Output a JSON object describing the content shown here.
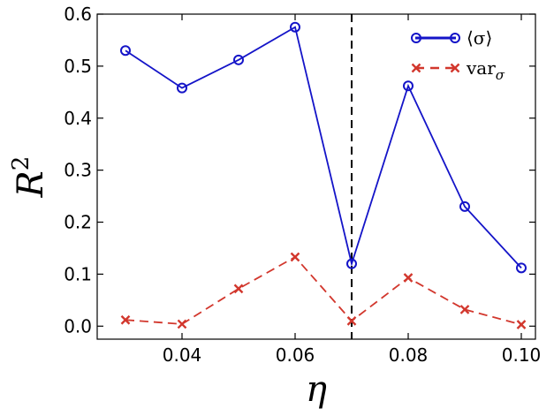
{
  "chart_data": {
    "type": "line",
    "title": "",
    "xlabel": "η",
    "ylabel": "R",
    "ylabel_superscript": "2",
    "xlim": [
      0.025,
      0.1025
    ],
    "ylim": [
      -0.025,
      0.6
    ],
    "xticks": [
      0.04,
      0.06,
      0.08,
      0.1
    ],
    "xtick_labels": [
      "0.04",
      "0.06",
      "0.08",
      "0.10"
    ],
    "yticks": [
      0.0,
      0.1,
      0.2,
      0.3,
      0.4,
      0.5,
      0.6
    ],
    "ytick_labels": [
      "0.0",
      "0.1",
      "0.2",
      "0.3",
      "0.4",
      "0.5",
      "0.6"
    ],
    "x": [
      0.03,
      0.04,
      0.05,
      0.06,
      0.07,
      0.08,
      0.09,
      0.1
    ],
    "series": [
      {
        "name": "⟨σ⟩",
        "color": "#1414c8",
        "marker": "circle",
        "line": "solid",
        "values": [
          0.53,
          0.458,
          0.512,
          0.575,
          0.12,
          0.462,
          0.23,
          0.112
        ]
      },
      {
        "name": "var",
        "name_subscript": "σ",
        "color": "#d2372d",
        "marker": "x",
        "line": "dashed",
        "values": [
          0.012,
          0.004,
          0.072,
          0.133,
          0.01,
          0.093,
          0.032,
          0.003
        ]
      }
    ],
    "vertical_line": {
      "x": 0.07,
      "style": "dashed",
      "color": "#000000"
    },
    "grid": false,
    "legend_position": "top-right"
  }
}
